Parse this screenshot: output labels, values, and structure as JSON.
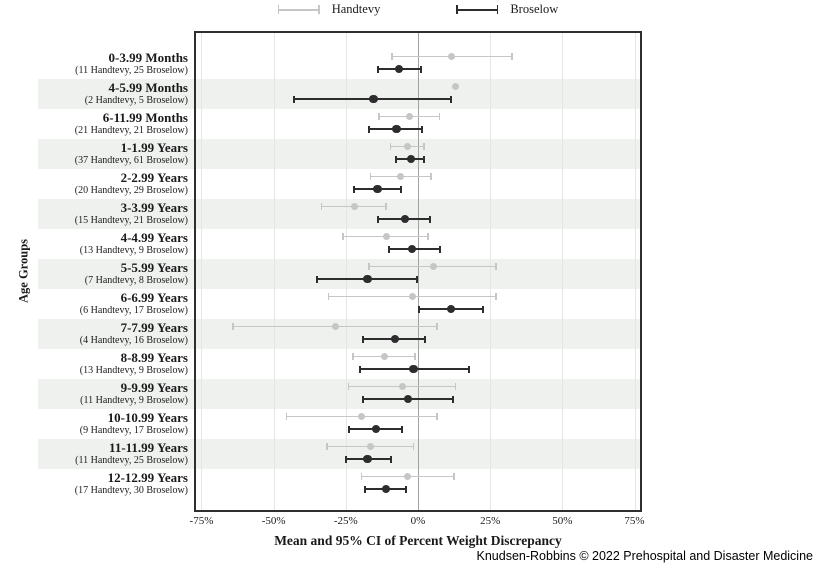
{
  "y_axis_label": "Age Groups",
  "footer": "Knudsen-Robbins © 2022 Prehospital and Disaster Medicine",
  "x_axis": {
    "label": "Mean and 95% CI of Percent Weight Discrepancy",
    "ticks": [
      "-75%",
      "-50%",
      "-25%",
      "0%",
      "25%",
      "50%",
      "75%"
    ],
    "tick_values": [
      -75,
      -50,
      -25,
      0,
      25,
      50,
      75
    ]
  },
  "colors": {
    "handtevy": "#c6c6c6",
    "broselow": "#2d2d2d",
    "band": "#eff1ef",
    "gridline": "#e4e7e4",
    "zero_line": "#a2a2a2",
    "plot_border": "#2e2e2e"
  },
  "chart_data": {
    "type": "scatter",
    "subtype": "forest_plot_errorbars",
    "title": "",
    "xlabel": "Mean and 95% CI of Percent Weight Discrepancy",
    "ylabel": "Age Groups",
    "xlim": [
      -77,
      77
    ],
    "grid": true,
    "legend_position": "top",
    "categories": [
      {
        "name": "0-3.99 Months",
        "sub": "(11 Handtevy, 25 Broselow)"
      },
      {
        "name": "4-5.99 Months",
        "sub": "(2 Handtevy, 5 Broselow)"
      },
      {
        "name": "6-11.99 Months",
        "sub": "(21 Handtevy, 21 Broselow)"
      },
      {
        "name": "1-1.99 Years",
        "sub": "(37 Handtevy, 61 Broselow)"
      },
      {
        "name": "2-2.99 Years",
        "sub": "(20 Handtevy, 29 Broselow)"
      },
      {
        "name": "3-3.99 Years",
        "sub": "(15 Handtevy, 21 Broselow)"
      },
      {
        "name": "4-4.99 Years",
        "sub": "(13 Handtevy, 9 Broselow)"
      },
      {
        "name": "5-5.99 Years",
        "sub": "(7 Handtevy, 8 Broselow)"
      },
      {
        "name": "6-6.99 Years",
        "sub": "(6 Handtevy, 17 Broselow)"
      },
      {
        "name": "7-7.99 Years",
        "sub": "(4 Handtevy, 16 Broselow)"
      },
      {
        "name": "8-8.99 Years",
        "sub": "(13 Handtevy, 9 Broselow)"
      },
      {
        "name": "9-9.99 Years",
        "sub": "(11 Handtevy, 9 Broselow)"
      },
      {
        "name": "10-10.99 Years",
        "sub": "(9 Handtevy, 17 Broselow)"
      },
      {
        "name": "11-11.99 Years",
        "sub": "(11 Handtevy, 25 Broselow)"
      },
      {
        "name": "12-12.99 Years",
        "sub": "(17 Handtevy, 30 Broselow)"
      }
    ],
    "series": [
      {
        "name": "Handtevy",
        "color": "#c6c6c6",
        "means": [
          11.5,
          13,
          -3,
          -3.5,
          -6,
          -22,
          -11,
          5.5,
          -2,
          -28.5,
          -11.5,
          -5.5,
          -19.5,
          -16.5,
          -3.5
        ],
        "ci_low": [
          -9,
          13,
          -13.5,
          -9.5,
          -16.5,
          -33.5,
          -26,
          -17,
          -31,
          -64,
          -22.5,
          -24,
          -45.5,
          -31.5,
          -19.5
        ],
        "ci_high": [
          32.5,
          13,
          7.5,
          2,
          4.5,
          -11,
          3.5,
          27,
          27,
          6.5,
          -1,
          13,
          6.5,
          -1.5,
          12.5
        ]
      },
      {
        "name": "Broselow",
        "color": "#2d2d2d",
        "means": [
          -6.5,
          -15.5,
          -7.5,
          -2.5,
          -14,
          -4.5,
          -2,
          -17.5,
          11.5,
          -8,
          -1.5,
          -3.5,
          -14.5,
          -17.5,
          -11
        ],
        "ci_low": [
          -14,
          -43,
          -17,
          -7.5,
          -22,
          -14,
          -10,
          -35,
          0.5,
          -19,
          -20,
          -19,
          -24,
          -25,
          -18.5
        ],
        "ci_high": [
          1,
          11.5,
          1.5,
          2,
          -6,
          4,
          7.5,
          -0.5,
          22.5,
          2.5,
          17.5,
          12,
          -5.5,
          -9.5,
          -4
        ]
      }
    ]
  }
}
